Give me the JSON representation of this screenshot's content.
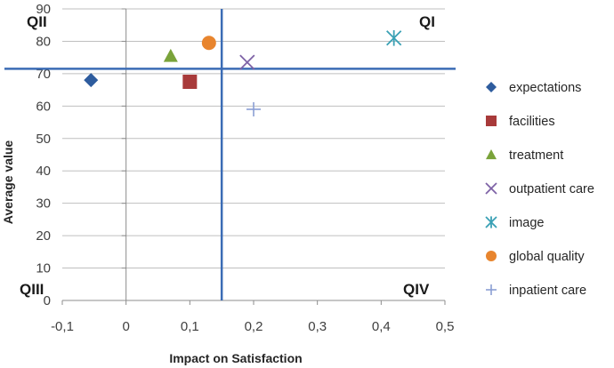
{
  "chart_data": {
    "type": "scatter",
    "xlabel": "Impact on Satisfaction",
    "ylabel": "Average value",
    "xlim": [
      -0.1,
      0.5
    ],
    "ylim": [
      0,
      90
    ],
    "x_ticks": [
      "-0,1",
      "0",
      "0,1",
      "0,2",
      "0,3",
      "0,4",
      "0,5"
    ],
    "y_ticks": [
      "0",
      "10",
      "20",
      "30",
      "40",
      "50",
      "60",
      "70",
      "80",
      "90"
    ],
    "grid": true,
    "legend_position": "right",
    "reference_lines": {
      "x": 0.15,
      "y": 71.5,
      "color": "#3b6cb5"
    },
    "quadrants": {
      "q1": "QI",
      "q2": "QII",
      "q3": "QIII",
      "q4": "QIV"
    },
    "series": [
      {
        "name": "expectations",
        "x": -0.055,
        "y": 68,
        "marker": "diamond",
        "color": "#2e5c9e"
      },
      {
        "name": "facilities",
        "x": 0.1,
        "y": 67.5,
        "marker": "square",
        "color": "#a83a3a"
      },
      {
        "name": "treatment",
        "x": 0.07,
        "y": 75.5,
        "marker": "triangle",
        "color": "#7aa33a"
      },
      {
        "name": "outpatient care",
        "x": 0.19,
        "y": 73.5,
        "marker": "x",
        "color": "#7e62a6"
      },
      {
        "name": "image",
        "x": 0.42,
        "y": 81,
        "marker": "asterisk",
        "color": "#3aa1b5"
      },
      {
        "name": "global quality",
        "x": 0.13,
        "y": 79.5,
        "marker": "circle",
        "color": "#e8852e"
      },
      {
        "name": "inpatient care",
        "x": 0.2,
        "y": 59,
        "marker": "plus",
        "color": "#8a9ed4"
      }
    ]
  }
}
